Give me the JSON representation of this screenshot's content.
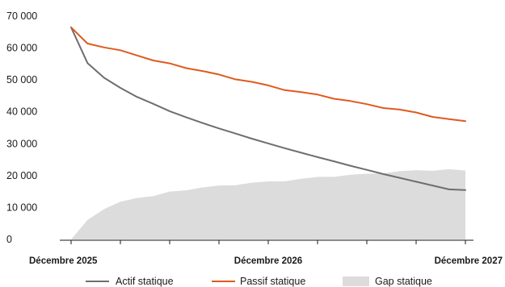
{
  "chart_data": {
    "type": "line",
    "title": "",
    "xlabel": "",
    "ylabel": "",
    "ylim": [
      0,
      70000
    ],
    "yticks": [
      0,
      10000,
      20000,
      30000,
      40000,
      50000,
      60000,
      70000
    ],
    "ytick_labels": [
      "0",
      "10 000",
      "20 000",
      "30 000",
      "40 000",
      "50 000",
      "60 000",
      "70 000"
    ],
    "x_period_count": 24,
    "x_ticks": [
      0,
      3,
      6,
      9,
      12,
      15,
      18,
      21,
      24
    ],
    "x_labels": [
      {
        "x": 0,
        "text": "Décembre 2025"
      },
      {
        "x": 12,
        "text": "Décembre 2026"
      },
      {
        "x": 24,
        "text": "Décembre 2027"
      }
    ],
    "grid": false,
    "legend_position": "bottom",
    "series": [
      {
        "name": "Actif statique",
        "kind": "line",
        "color": "#6e6e6e",
        "x": [
          0,
          1,
          2,
          3,
          4,
          5,
          6,
          7,
          8,
          9,
          10,
          11,
          12,
          13,
          14,
          15,
          16,
          17,
          18,
          19,
          20,
          21,
          22,
          23,
          24
        ],
        "values": [
          66500,
          55300,
          50700,
          47500,
          44700,
          42500,
          40200,
          38300,
          36500,
          34800,
          33200,
          31600,
          30100,
          28600,
          27200,
          25800,
          24500,
          23100,
          21800,
          20500,
          19300,
          18100,
          16900,
          15700,
          15500
        ]
      },
      {
        "name": "Passif statique",
        "kind": "line",
        "color": "#e05a1e",
        "x": [
          0,
          1,
          2,
          3,
          4,
          5,
          6,
          7,
          8,
          9,
          10,
          11,
          12,
          13,
          14,
          15,
          16,
          17,
          18,
          19,
          20,
          21,
          22,
          23,
          24
        ],
        "values": [
          66500,
          61400,
          60200,
          59300,
          57700,
          56100,
          55200,
          53700,
          52800,
          51700,
          50200,
          49400,
          48300,
          46800,
          46200,
          45400,
          44100,
          43400,
          42400,
          41200,
          40700,
          39800,
          38400,
          37700,
          37100
        ]
      },
      {
        "name": "Gap statique",
        "kind": "area",
        "color": "#dcdcdc",
        "x": [
          0,
          1,
          2,
          3,
          4,
          5,
          6,
          7,
          8,
          9,
          10,
          11,
          12,
          13,
          14,
          15,
          16,
          17,
          18,
          19,
          20,
          21,
          22,
          23,
          24
        ],
        "values": [
          0,
          6100,
          9500,
          11800,
          13000,
          13600,
          15000,
          15400,
          16300,
          16900,
          17000,
          17800,
          18200,
          18200,
          19000,
          19600,
          19600,
          20300,
          20600,
          20700,
          21400,
          21700,
          21500,
          22000,
          21600
        ]
      }
    ]
  }
}
